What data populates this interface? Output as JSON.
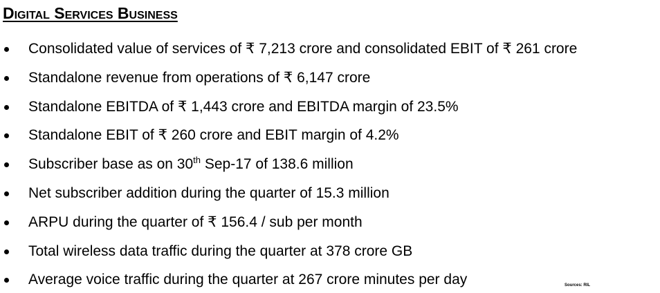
{
  "header": {
    "title": "Digital Services Business"
  },
  "bullets": [
    {
      "text": "Consolidated value of services of ₹ 7,213 crore and consolidated EBIT of ₹ 261 crore"
    },
    {
      "text": "Standalone revenue from operations of ₹ 6,147 crore"
    },
    {
      "text": "Standalone EBITDA of ₹ 1,443 crore and EBITDA margin of 23.5%"
    },
    {
      "text": "Standalone EBIT of ₹ 260 crore and EBIT margin of 4.2%"
    },
    {
      "text": "Subscriber base as on 30",
      "sup": "th",
      "rest": " Sep-17 of 138.6 million"
    },
    {
      "text": "Net subscriber addition during the quarter of 15.3 million"
    },
    {
      "text": "ARPU during the quarter of ₹ 156.4 / sub per month"
    },
    {
      "text": "Total wireless data traffic during the quarter at 378 crore GB"
    },
    {
      "text": "Average voice traffic during the quarter at 267 crore minutes per day"
    }
  ],
  "footer": {
    "source": "Sources: RIL"
  }
}
